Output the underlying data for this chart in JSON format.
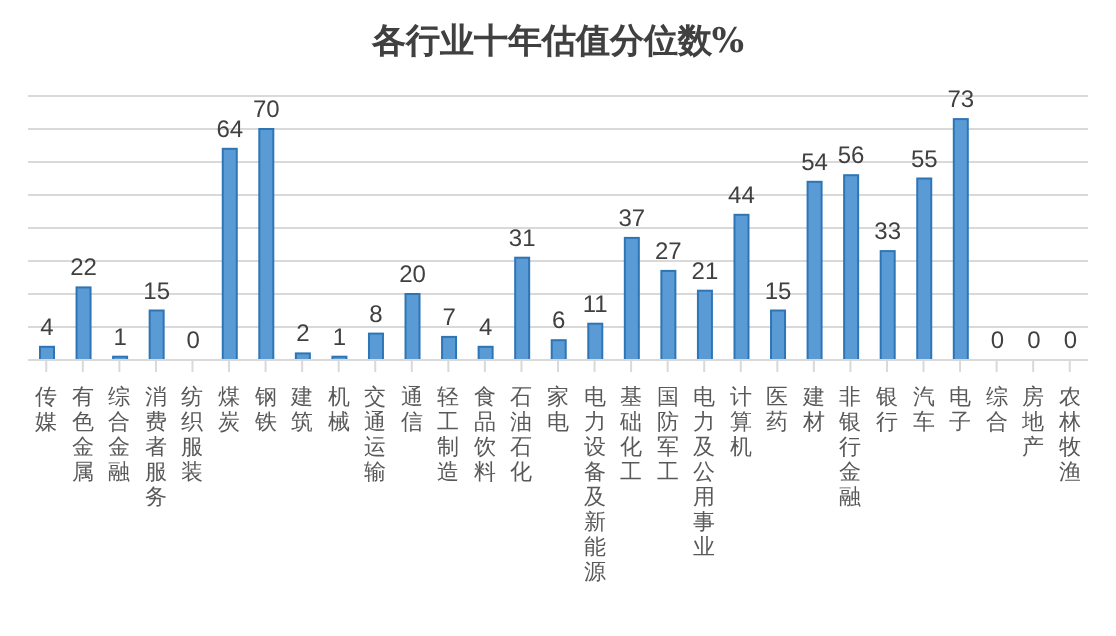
{
  "chart_data": {
    "type": "bar",
    "title": "各行业十年估值分位数%",
    "categories": [
      "传媒",
      "有色金属",
      "综合金融",
      "消费者服务",
      "纺织服装",
      "煤炭",
      "钢铁",
      "建筑",
      "机械",
      "交通运输",
      "通信",
      "轻工制造",
      "食品饮料",
      "石油石化",
      "家电",
      "电力设备及新能源",
      "基础化工",
      "国防军工",
      "电力及公用事业",
      "计算机",
      "医药",
      "建材",
      "非银行金融",
      "银行",
      "汽车",
      "电子",
      "综合",
      "房地产",
      "农林牧渔"
    ],
    "values": [
      4,
      22,
      1,
      15,
      0,
      64,
      70,
      2,
      1,
      8,
      20,
      7,
      4,
      31,
      6,
      11,
      37,
      27,
      21,
      44,
      15,
      54,
      56,
      33,
      55,
      73,
      0,
      0,
      0
    ],
    "color": "#5b9bd5",
    "ylim": [
      0,
      80
    ],
    "yticks": [
      0,
      10,
      20,
      30,
      40,
      50,
      60,
      70,
      80
    ],
    "grid": "y",
    "tick_labels": "x",
    "data_labels": true
  }
}
